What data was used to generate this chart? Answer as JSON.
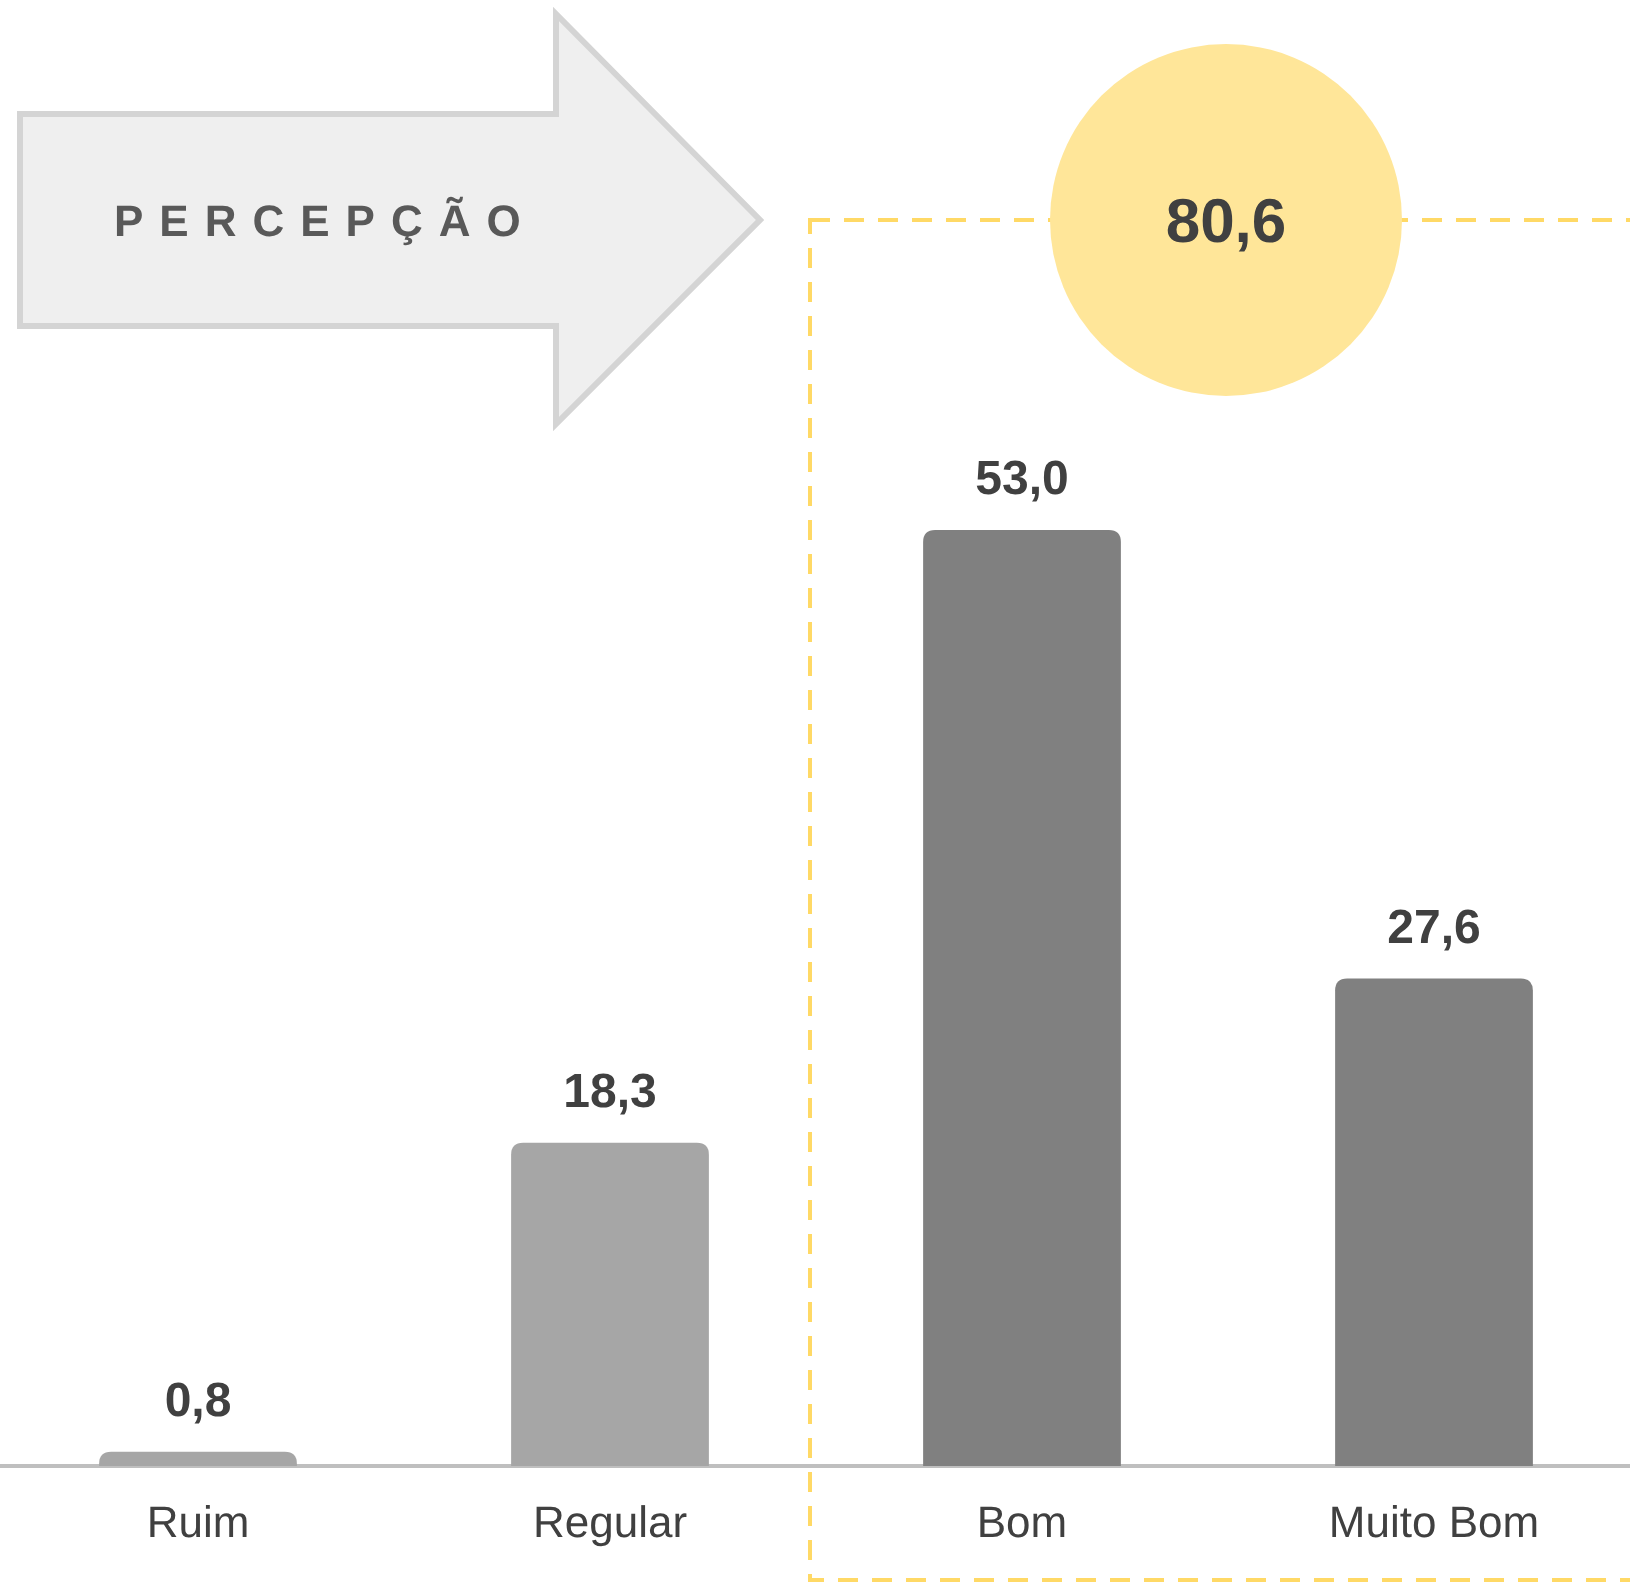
{
  "chart_data": {
    "type": "bar",
    "title": "PERCEPÇÃO",
    "categories": [
      "Ruim",
      "Regular",
      "Bom",
      "Muito Bom"
    ],
    "values": [
      0.8,
      18.3,
      53.0,
      27.6
    ],
    "colors": [
      "#a6a6a6",
      "#a6a6a6",
      "#808080",
      "#808080"
    ],
    "value_labels": [
      "0,8",
      "18,3",
      "53,0",
      "27,6"
    ],
    "annotations": [
      "80,6"
    ]
  }
}
